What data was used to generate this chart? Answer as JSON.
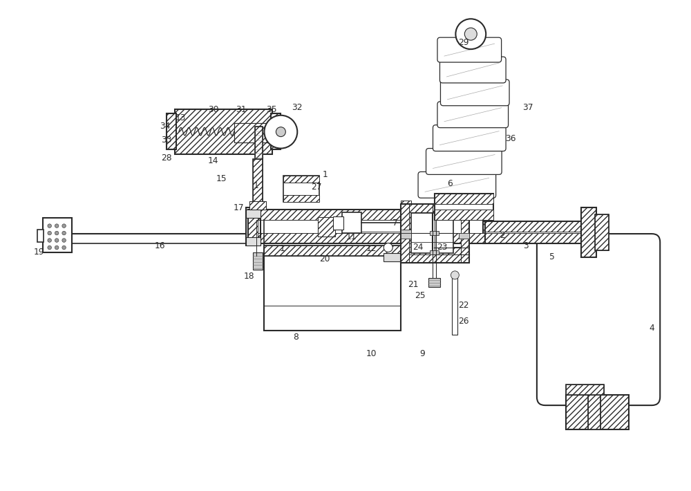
{
  "bg": "#ffffff",
  "lc": "#2a2a2a",
  "labels": [
    [
      "1",
      4.08,
      3.5
    ],
    [
      "1",
      3.7,
      4.42
    ],
    [
      "1",
      4.7,
      4.58
    ],
    [
      "2",
      7.28,
      3.7
    ],
    [
      "3",
      7.62,
      3.55
    ],
    [
      "4",
      9.45,
      2.35
    ],
    [
      "5",
      8.0,
      3.38
    ],
    [
      "6",
      6.52,
      4.45
    ],
    [
      "7",
      5.72,
      3.88
    ],
    [
      "8",
      4.28,
      2.22
    ],
    [
      "9",
      6.12,
      1.98
    ],
    [
      "10",
      5.38,
      1.98
    ],
    [
      "11",
      5.08,
      3.68
    ],
    [
      "12",
      5.38,
      3.5
    ],
    [
      "13",
      2.6,
      5.4
    ],
    [
      "14",
      3.08,
      4.78
    ],
    [
      "15",
      3.2,
      4.52
    ],
    [
      "16",
      2.3,
      3.55
    ],
    [
      "17",
      3.45,
      4.1
    ],
    [
      "18",
      3.6,
      3.1
    ],
    [
      "19",
      0.55,
      3.45
    ],
    [
      "20",
      4.7,
      3.35
    ],
    [
      "21",
      5.98,
      2.98
    ],
    [
      "22",
      6.72,
      2.68
    ],
    [
      "23",
      6.4,
      3.52
    ],
    [
      "24",
      6.05,
      3.52
    ],
    [
      "25",
      6.08,
      2.82
    ],
    [
      "26",
      6.72,
      2.45
    ],
    [
      "27",
      4.58,
      4.4
    ],
    [
      "28",
      2.4,
      4.82
    ],
    [
      "29",
      6.72,
      6.5
    ],
    [
      "30",
      3.08,
      5.52
    ],
    [
      "31",
      3.48,
      5.52
    ],
    [
      "32",
      4.3,
      5.55
    ],
    [
      "33",
      2.4,
      5.08
    ],
    [
      "34",
      2.38,
      5.28
    ],
    [
      "35",
      3.92,
      5.52
    ],
    [
      "36",
      7.4,
      5.1
    ],
    [
      "37",
      7.65,
      5.55
    ]
  ]
}
